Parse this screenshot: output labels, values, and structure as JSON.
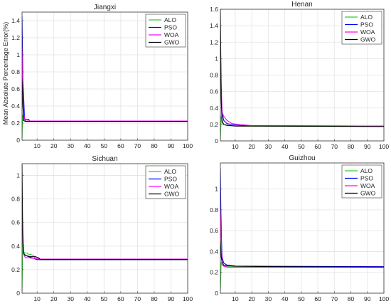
{
  "figure": {
    "ylabel": "Mean Absolute Percentage Error(%)"
  },
  "legend_entries": [
    {
      "name": "ALO",
      "color": "#33cc33"
    },
    {
      "name": "PSO",
      "color": "#0000ff"
    },
    {
      "name": "WOA",
      "color": "#ff00ff"
    },
    {
      "name": "GWO",
      "color": "#000000"
    }
  ],
  "chart_data": [
    {
      "type": "line",
      "title": "Jiangxi",
      "xlabel": "",
      "ylabel": "",
      "xlim": [
        1,
        100
      ],
      "ylim": [
        0,
        1.5
      ],
      "xticks": [
        "10",
        "20",
        "30",
        "40",
        "50",
        "60",
        "70",
        "80",
        "90",
        "100"
      ],
      "yticks": [
        "0",
        "0.2",
        "0.4",
        "0.6",
        "0.8",
        "1",
        "1.2",
        "1.4"
      ],
      "grid": true,
      "legend": "top-right",
      "series": [
        {
          "name": "ALO",
          "color": "#33cc33",
          "x": [
            1,
            1.3,
            1.6,
            2,
            3,
            100
          ],
          "y": [
            0.02,
            0.3,
            0.23,
            0.23,
            0.225,
            0.225
          ]
        },
        {
          "name": "PSO",
          "color": "#0000ff",
          "x": [
            1,
            1.5,
            2,
            2.5,
            5,
            5.5,
            100
          ],
          "y": [
            1.45,
            0.7,
            0.5,
            0.245,
            0.245,
            0.225,
            0.225
          ]
        },
        {
          "name": "WOA",
          "color": "#ff00ff",
          "x": [
            1,
            1.5,
            2,
            3,
            100
          ],
          "y": [
            1.1,
            0.5,
            0.3,
            0.225,
            0.225
          ]
        },
        {
          "name": "GWO",
          "color": "#000000",
          "x": [
            1,
            1.5,
            2,
            3,
            100
          ],
          "y": [
            0.72,
            0.4,
            0.23,
            0.22,
            0.22
          ]
        }
      ]
    },
    {
      "type": "line",
      "title": "Henan",
      "xlabel": "",
      "ylabel": "",
      "xlim": [
        1,
        100
      ],
      "ylim": [
        0,
        1.6
      ],
      "xticks": [
        "10",
        "20",
        "30",
        "40",
        "50",
        "60",
        "70",
        "80",
        "90",
        "100"
      ],
      "yticks": [
        "0",
        "0.2",
        "0.4",
        "0.6",
        "0.8",
        "1",
        "1.2",
        "1.4",
        "1.6"
      ],
      "grid": true,
      "legend": "top-right",
      "series": [
        {
          "name": "ALO",
          "color": "#33cc33",
          "x": [
            1,
            1.5,
            2,
            3,
            5,
            100
          ],
          "y": [
            0.02,
            0.3,
            0.22,
            0.2,
            0.185,
            0.18
          ]
        },
        {
          "name": "PSO",
          "color": "#0000ff",
          "x": [
            1,
            1.5,
            2,
            3,
            5,
            8,
            15,
            100
          ],
          "y": [
            0.9,
            0.6,
            0.35,
            0.25,
            0.21,
            0.2,
            0.185,
            0.18
          ]
        },
        {
          "name": "WOA",
          "color": "#ff00ff",
          "x": [
            1,
            1.5,
            2,
            3,
            5,
            8,
            12,
            20,
            100
          ],
          "y": [
            1.2,
            0.7,
            0.35,
            0.3,
            0.25,
            0.21,
            0.2,
            0.185,
            0.18
          ]
        },
        {
          "name": "GWO",
          "color": "#000000",
          "x": [
            1,
            1.5,
            2,
            3,
            5,
            10,
            100
          ],
          "y": [
            1.6,
            0.5,
            0.25,
            0.2,
            0.19,
            0.18,
            0.175
          ]
        }
      ]
    },
    {
      "type": "line",
      "title": "Sichuan",
      "xlabel": "",
      "ylabel": "",
      "xlim": [
        1,
        100
      ],
      "ylim": [
        0,
        1.1
      ],
      "xticks": [
        "10",
        "20",
        "30",
        "40",
        "50",
        "60",
        "70",
        "80",
        "90",
        "100"
      ],
      "yticks": [
        "0",
        "0.2",
        "0.4",
        "0.6",
        "0.8",
        "1"
      ],
      "grid": true,
      "legend": "top-right",
      "series": [
        {
          "name": "ALO",
          "color": "#33cc33",
          "x": [
            1,
            1.5,
            2,
            3,
            4,
            5,
            6,
            8,
            9,
            10,
            100
          ],
          "y": [
            0.02,
            0.5,
            0.35,
            0.34,
            0.34,
            0.33,
            0.33,
            0.32,
            0.29,
            0.285,
            0.285
          ]
        },
        {
          "name": "PSO",
          "color": "#0000ff",
          "x": [
            1,
            1.5,
            2,
            3,
            5,
            10,
            100
          ],
          "y": [
            0.6,
            0.45,
            0.33,
            0.32,
            0.31,
            0.285,
            0.285
          ]
        },
        {
          "name": "WOA",
          "color": "#ff00ff",
          "x": [
            1,
            1.5,
            2,
            3,
            5,
            12,
            100
          ],
          "y": [
            0.7,
            0.45,
            0.33,
            0.3,
            0.3,
            0.29,
            0.29
          ]
        },
        {
          "name": "GWO",
          "color": "#000000",
          "x": [
            1,
            1.3,
            1.6,
            2,
            3,
            6,
            9,
            11,
            12,
            100
          ],
          "y": [
            1.1,
            0.65,
            0.4,
            0.34,
            0.32,
            0.31,
            0.31,
            0.3,
            0.285,
            0.285
          ]
        }
      ]
    },
    {
      "type": "line",
      "title": "Guizhou",
      "xlabel": "",
      "ylabel": "",
      "xlim": [
        1,
        100
      ],
      "ylim": [
        0,
        1.25
      ],
      "xticks": [
        "10",
        "20",
        "30",
        "40",
        "50",
        "60",
        "70",
        "80",
        "90",
        "100"
      ],
      "yticks": [
        "0",
        "0.2",
        "0.4",
        "0.6",
        "0.8",
        "1"
      ],
      "grid": true,
      "legend": "top-right",
      "series": [
        {
          "name": "ALO",
          "color": "#33cc33",
          "x": [
            1,
            1.5,
            2,
            3,
            5,
            100
          ],
          "y": [
            0.02,
            0.3,
            0.27,
            0.26,
            0.255,
            0.255
          ]
        },
        {
          "name": "PSO",
          "color": "#0000ff",
          "x": [
            1,
            1.3,
            1.7,
            2,
            3,
            5,
            10,
            100
          ],
          "y": [
            1.2,
            0.8,
            0.5,
            0.35,
            0.29,
            0.27,
            0.26,
            0.255
          ]
        },
        {
          "name": "WOA",
          "color": "#ff00ff",
          "x": [
            1,
            1.5,
            2,
            3,
            5,
            100
          ],
          "y": [
            0.8,
            0.5,
            0.3,
            0.26,
            0.25,
            0.25
          ]
        },
        {
          "name": "GWO",
          "color": "#000000",
          "x": [
            1,
            1.5,
            2,
            3,
            5,
            10,
            30,
            100
          ],
          "y": [
            0.5,
            0.35,
            0.3,
            0.27,
            0.265,
            0.26,
            0.255,
            0.25
          ]
        }
      ]
    }
  ]
}
